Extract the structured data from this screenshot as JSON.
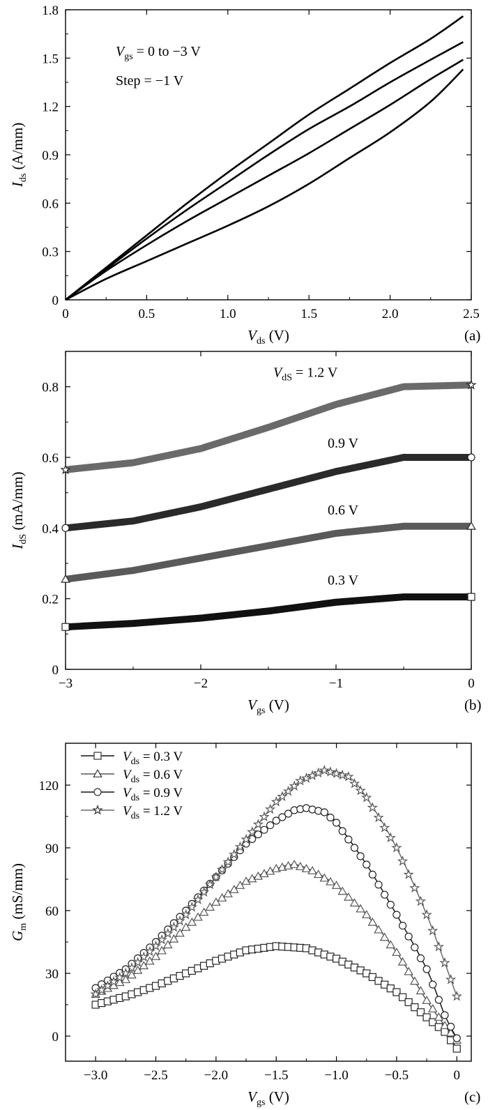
{
  "chart_data": [
    {
      "panel": "(a)",
      "type": "line",
      "xlabel": {
        "main": "V",
        "sub": "ds",
        "unit": " (V)"
      },
      "ylabel": {
        "main": "I",
        "sub": "ds",
        "unit": " (A/mm)"
      },
      "xlim": [
        0,
        2.5
      ],
      "ylim": [
        0,
        1.8
      ],
      "xticks": [
        0,
        0.5,
        1.0,
        1.5,
        2.0,
        2.5
      ],
      "xtick_labels": [
        "0",
        "0.5",
        "1.0",
        "1.5",
        "2.0",
        "2.5"
      ],
      "yticks": [
        0,
        0.3,
        0.6,
        0.9,
        1.2,
        1.5,
        1.8
      ],
      "ytick_labels": [
        "0",
        "0.3",
        "0.6",
        "0.9",
        "1.2",
        "1.5",
        "1.8"
      ],
      "annotations": [
        {
          "main": "V",
          "sub": "gs",
          "rest": " = 0 to −3 V"
        },
        {
          "text": "Step = −1 V"
        }
      ],
      "x": [
        0,
        0.25,
        0.5,
        0.75,
        1.0,
        1.25,
        1.5,
        1.75,
        2.0,
        2.25,
        2.45
      ],
      "series": [
        {
          "values": [
            0,
            0.2,
            0.4,
            0.6,
            0.79,
            0.97,
            1.15,
            1.31,
            1.47,
            1.62,
            1.76
          ]
        },
        {
          "values": [
            0,
            0.19,
            0.38,
            0.56,
            0.73,
            0.9,
            1.06,
            1.2,
            1.35,
            1.49,
            1.6
          ]
        },
        {
          "values": [
            0,
            0.18,
            0.34,
            0.49,
            0.63,
            0.77,
            0.91,
            1.06,
            1.21,
            1.37,
            1.49
          ]
        },
        {
          "values": [
            0,
            0.13,
            0.24,
            0.35,
            0.46,
            0.58,
            0.72,
            0.88,
            1.04,
            1.23,
            1.43
          ]
        }
      ]
    },
    {
      "panel": "(b)",
      "type": "scatter",
      "xlabel": {
        "main": "V",
        "sub": "gs",
        "unit": " (V)"
      },
      "ylabel": {
        "main": "I",
        "sub": "dS",
        "unit": " (mA/mm)"
      },
      "xlim": [
        -3,
        0
      ],
      "ylim": [
        0,
        0.9
      ],
      "xticks": [
        -3,
        -2,
        -1,
        0
      ],
      "xtick_labels": [
        "−3",
        "−2",
        "−1",
        "0"
      ],
      "yticks": [
        0,
        0.2,
        0.4,
        0.6,
        0.8
      ],
      "ytick_labels": [
        "0",
        "0.2",
        "0.4",
        "0.6",
        "0.8"
      ],
      "x": [
        -3.0,
        -2.5,
        -2.0,
        -1.5,
        -1.0,
        -0.5,
        0.0
      ],
      "series": [
        {
          "label": "0.3 V",
          "marker": "square",
          "color": "#111111",
          "values": [
            0.12,
            0.13,
            0.145,
            0.165,
            0.19,
            0.205,
            0.205
          ]
        },
        {
          "label": "0.6 V",
          "marker": "triangle",
          "color": "#5a5a5a",
          "values": [
            0.255,
            0.28,
            0.315,
            0.35,
            0.385,
            0.405,
            0.405
          ]
        },
        {
          "label": "0.9 V",
          "marker": "circle",
          "color": "#2a2a2a",
          "values": [
            0.4,
            0.42,
            0.46,
            0.51,
            0.56,
            0.6,
            0.6
          ]
        },
        {
          "label_main": "V",
          "label_sub": "dS",
          "label": " = 1.2 V",
          "marker": "star",
          "color": "#6a6a6a",
          "values": [
            0.565,
            0.585,
            0.625,
            0.685,
            0.75,
            0.8,
            0.805
          ]
        }
      ]
    },
    {
      "panel": "(c)",
      "type": "line",
      "xlabel": {
        "main": "V",
        "sub": "gs",
        "unit": " (V)"
      },
      "ylabel": {
        "main": "G",
        "sub": "m",
        "unit": " (mS/mm)"
      },
      "xlim": [
        -3.25,
        0.12
      ],
      "ylim": [
        -12,
        140
      ],
      "xticks": [
        -3.0,
        -2.5,
        -2.0,
        -1.5,
        -1.0,
        -0.5,
        0.0
      ],
      "xtick_labels": [
        "−3.0",
        "−2.5",
        "−2.0",
        "−1.5",
        "−1.0",
        "−0.5",
        "0"
      ],
      "yticks": [
        0,
        30,
        60,
        90,
        120
      ],
      "ytick_labels": [
        "0",
        "30",
        "60",
        "90",
        "120"
      ],
      "legend_position": "top-left",
      "series": [
        {
          "name_main": "V",
          "name_sub": "ds",
          "name_rest": " = 0.3 V",
          "marker": "square",
          "color": "#111111",
          "x": [
            -3.0,
            -2.75,
            -2.5,
            -2.25,
            -2.0,
            -1.75,
            -1.5,
            -1.25,
            -1.0,
            -0.75,
            -0.5,
            -0.25,
            -0.1,
            0.0
          ],
          "values": [
            15,
            19,
            24,
            30,
            36,
            41,
            43,
            42,
            37,
            30,
            21,
            9,
            2,
            -6
          ]
        },
        {
          "name_main": "V",
          "name_sub": "ds",
          "name_rest": " = 0.6 V",
          "marker": "triangle",
          "color": "#555555",
          "x": [
            -3.0,
            -2.75,
            -2.5,
            -2.25,
            -2.0,
            -1.75,
            -1.5,
            -1.35,
            -1.2,
            -1.0,
            -0.75,
            -0.5,
            -0.25,
            -0.1,
            0.0
          ],
          "values": [
            20,
            27,
            38,
            52,
            64,
            74,
            80,
            82,
            79,
            72,
            58,
            40,
            17,
            5,
            -2
          ]
        },
        {
          "name_main": "V",
          "name_sub": "ds",
          "name_rest": " = 0.9 V",
          "marker": "circle",
          "color": "#111111",
          "x": [
            -3.0,
            -2.75,
            -2.5,
            -2.25,
            -2.0,
            -1.75,
            -1.5,
            -1.35,
            -1.25,
            -1.1,
            -1.0,
            -0.75,
            -0.5,
            -0.25,
            -0.1,
            0.0
          ],
          "values": [
            23,
            32,
            45,
            60,
            76,
            92,
            103,
            108,
            109,
            107,
            102,
            82,
            58,
            32,
            10,
            -1
          ]
        },
        {
          "name_main": "V",
          "name_sub": "ds",
          "name_rest": " = 1.2 V",
          "marker": "star",
          "color": "#6a6a6a",
          "x": [
            -3.0,
            -2.75,
            -2.5,
            -2.25,
            -2.0,
            -1.75,
            -1.5,
            -1.3,
            -1.1,
            -0.9,
            -0.75,
            -0.5,
            -0.25,
            -0.1,
            0.0
          ],
          "values": [
            20,
            30,
            43,
            58,
            76,
            94,
            112,
            122,
            127,
            124,
            114,
            90,
            58,
            35,
            19
          ]
        }
      ]
    }
  ]
}
